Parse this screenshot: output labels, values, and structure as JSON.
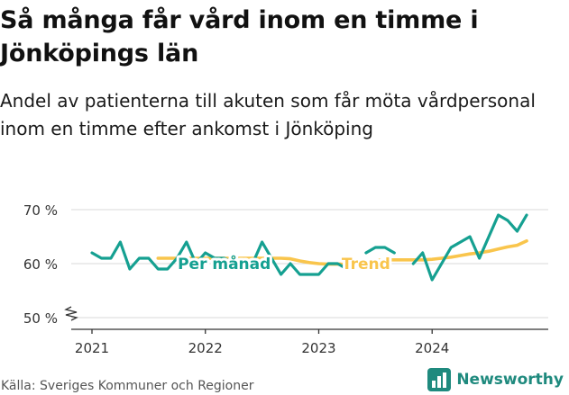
{
  "title": "Så många får vård inom en timme i Jönköpings län",
  "subtitle": "Andel av patienterna till akuten som får möta vårdpersonal inom en timme efter ankomst i Jönköping",
  "source": "Källa: Sveriges Kommuner och Regioner",
  "brand": "Newsworthy",
  "colors": {
    "per_manad": "#15a091",
    "trend": "#f9c54c",
    "axis": "#333333",
    "grid": "#d9d9d9",
    "brand": "#1f8a7e"
  },
  "chart_data": {
    "type": "line",
    "title": "Så många får vård inom en timme i Jönköpings län",
    "xlabel": "",
    "ylabel": "",
    "x_ticks": [
      "2021",
      "2022",
      "2023",
      "2024"
    ],
    "y_ticks": [
      "50 %",
      "60 %",
      "70 %"
    ],
    "ylim": [
      50,
      70
    ],
    "xlim": [
      "2021-01",
      "2024-11"
    ],
    "y_axis_break": true,
    "grid": true,
    "series": [
      {
        "name": "Per månad",
        "values": [
          [
            "2021-01",
            62
          ],
          [
            "2021-02",
            61
          ],
          [
            "2021-03",
            61
          ],
          [
            "2021-04",
            64
          ],
          [
            "2021-05",
            59
          ],
          [
            "2021-06",
            61
          ],
          [
            "2021-07",
            61
          ],
          [
            "2021-08",
            59
          ],
          [
            "2021-09",
            59
          ],
          [
            "2021-10",
            61
          ],
          [
            "2021-11",
            64
          ],
          [
            "2021-12",
            60
          ],
          [
            "2022-01",
            62
          ],
          [
            "2022-02",
            61
          ],
          [
            "2022-03",
            61
          ],
          [
            "2022-04",
            60
          ],
          [
            "2022-05",
            60
          ],
          [
            "2022-06",
            60
          ],
          [
            "2022-07",
            64
          ],
          [
            "2022-08",
            61
          ],
          [
            "2022-09",
            58
          ],
          [
            "2022-10",
            60
          ],
          [
            "2022-11",
            58
          ],
          [
            "2022-12",
            58
          ],
          [
            "2023-01",
            58
          ],
          [
            "2023-02",
            60
          ],
          [
            "2023-03",
            60
          ],
          [
            "2023-04",
            59
          ],
          [
            "2023-05",
            null
          ],
          [
            "2023-06",
            62
          ],
          [
            "2023-07",
            63
          ],
          [
            "2023-08",
            63
          ],
          [
            "2023-09",
            62
          ],
          [
            "2023-10",
            null
          ],
          [
            "2023-11",
            60
          ],
          [
            "2023-12",
            62
          ],
          [
            "2024-01",
            57
          ],
          [
            "2024-02",
            60
          ],
          [
            "2024-03",
            63
          ],
          [
            "2024-04",
            64
          ],
          [
            "2024-05",
            65
          ],
          [
            "2024-06",
            61
          ],
          [
            "2024-07",
            65
          ],
          [
            "2024-08",
            69
          ],
          [
            "2024-09",
            68
          ],
          [
            "2024-10",
            66
          ],
          [
            "2024-11",
            69
          ]
        ]
      },
      {
        "name": "Trend",
        "values": [
          [
            "2021-08",
            61
          ],
          [
            "2021-09",
            61
          ],
          [
            "2021-10",
            61
          ],
          [
            "2021-11",
            61
          ],
          [
            "2021-12",
            61
          ],
          [
            "2022-01",
            61
          ],
          [
            "2022-02",
            61
          ],
          [
            "2022-03",
            61
          ],
          [
            "2022-04",
            61
          ],
          [
            "2022-05",
            61
          ],
          [
            "2022-06",
            61
          ],
          [
            "2022-07",
            61
          ],
          [
            "2022-08",
            61
          ],
          [
            "2022-09",
            61
          ],
          [
            "2022-10",
            60.9
          ],
          [
            "2022-11",
            60.5
          ],
          [
            "2022-12",
            60.2
          ],
          [
            "2023-01",
            60
          ],
          [
            "2023-02",
            59.9
          ],
          [
            "2023-03",
            59.9
          ],
          [
            "2023-04",
            60
          ],
          [
            "2023-05",
            60.2
          ],
          [
            "2023-06",
            60.4
          ],
          [
            "2023-07",
            60.6
          ],
          [
            "2023-08",
            60.7
          ],
          [
            "2023-09",
            60.7
          ],
          [
            "2023-10",
            60.7
          ],
          [
            "2023-11",
            60.7
          ],
          [
            "2023-12",
            60.7
          ],
          [
            "2024-01",
            60.8
          ],
          [
            "2024-02",
            61
          ],
          [
            "2024-03",
            61.2
          ],
          [
            "2024-04",
            61.5
          ],
          [
            "2024-05",
            61.8
          ],
          [
            "2024-06",
            62
          ],
          [
            "2024-07",
            62.3
          ],
          [
            "2024-08",
            62.7
          ],
          [
            "2024-09",
            63.1
          ],
          [
            "2024-10",
            63.4
          ],
          [
            "2024-11",
            64.2
          ]
        ]
      }
    ],
    "annotations": [
      {
        "text": "Per månad",
        "series": "Per månad",
        "at": "2022-03"
      },
      {
        "text": "Trend",
        "series": "Trend",
        "at": "2023-06"
      }
    ]
  }
}
